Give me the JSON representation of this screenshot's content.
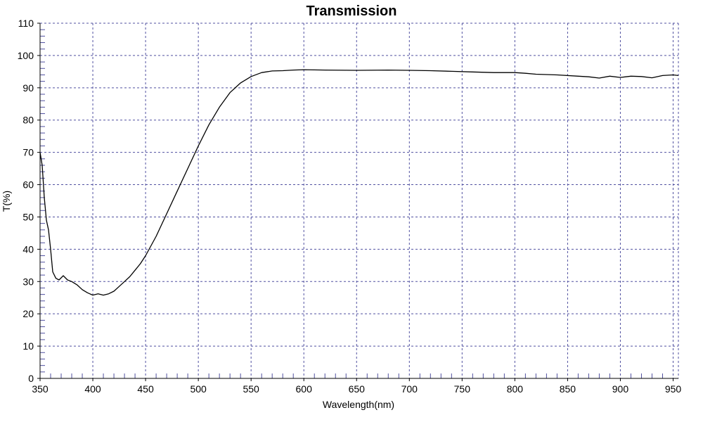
{
  "chart_data": {
    "type": "line",
    "title": "Transmission",
    "xlabel": "Wavelength(nm)",
    "ylabel": "T(%)",
    "xlim": [
      350,
      955
    ],
    "ylim": [
      0,
      110
    ],
    "x_ticks": [
      350,
      400,
      450,
      500,
      550,
      600,
      650,
      700,
      750,
      800,
      850,
      900,
      950
    ],
    "y_ticks": [
      0,
      10,
      20,
      30,
      40,
      50,
      60,
      70,
      80,
      90,
      100,
      110
    ],
    "grid": true,
    "legend": "none",
    "series": [
      {
        "color": "#000000",
        "points": [
          [
            350,
            70
          ],
          [
            352,
            66
          ],
          [
            354,
            56
          ],
          [
            356,
            49
          ],
          [
            358,
            46
          ],
          [
            360,
            40
          ],
          [
            362,
            33
          ],
          [
            365,
            31
          ],
          [
            368,
            30.5
          ],
          [
            372,
            31.8
          ],
          [
            376,
            30.5
          ],
          [
            380,
            30
          ],
          [
            385,
            29
          ],
          [
            390,
            27.5
          ],
          [
            395,
            26.5
          ],
          [
            400,
            25.8
          ],
          [
            405,
            26.2
          ],
          [
            410,
            25.8
          ],
          [
            415,
            26.2
          ],
          [
            420,
            27
          ],
          [
            425,
            28.5
          ],
          [
            430,
            30
          ],
          [
            435,
            31.5
          ],
          [
            440,
            33.5
          ],
          [
            445,
            35.5
          ],
          [
            450,
            38
          ],
          [
            460,
            44
          ],
          [
            470,
            51
          ],
          [
            480,
            58
          ],
          [
            490,
            65
          ],
          [
            500,
            72
          ],
          [
            510,
            78.5
          ],
          [
            520,
            84
          ],
          [
            530,
            88.5
          ],
          [
            540,
            91.5
          ],
          [
            550,
            93.5
          ],
          [
            560,
            94.7
          ],
          [
            570,
            95.2
          ],
          [
            580,
            95.3
          ],
          [
            590,
            95.5
          ],
          [
            600,
            95.6
          ],
          [
            620,
            95.5
          ],
          [
            650,
            95.4
          ],
          [
            680,
            95.5
          ],
          [
            700,
            95.4
          ],
          [
            720,
            95.3
          ],
          [
            740,
            95.1
          ],
          [
            760,
            94.9
          ],
          [
            780,
            94.7
          ],
          [
            800,
            94.7
          ],
          [
            810,
            94.5
          ],
          [
            820,
            94.2
          ],
          [
            840,
            94
          ],
          [
            860,
            93.6
          ],
          [
            870,
            93.4
          ],
          [
            880,
            93
          ],
          [
            890,
            93.6
          ],
          [
            900,
            93.2
          ],
          [
            910,
            93.6
          ],
          [
            920,
            93.5
          ],
          [
            930,
            93.1
          ],
          [
            940,
            93.8
          ],
          [
            950,
            94
          ],
          [
            955,
            93.8
          ]
        ]
      }
    ]
  },
  "colors": {
    "grid": "#5050a0",
    "axis": "#000000",
    "minor_tick": "#5050a0",
    "line": "#000000"
  }
}
